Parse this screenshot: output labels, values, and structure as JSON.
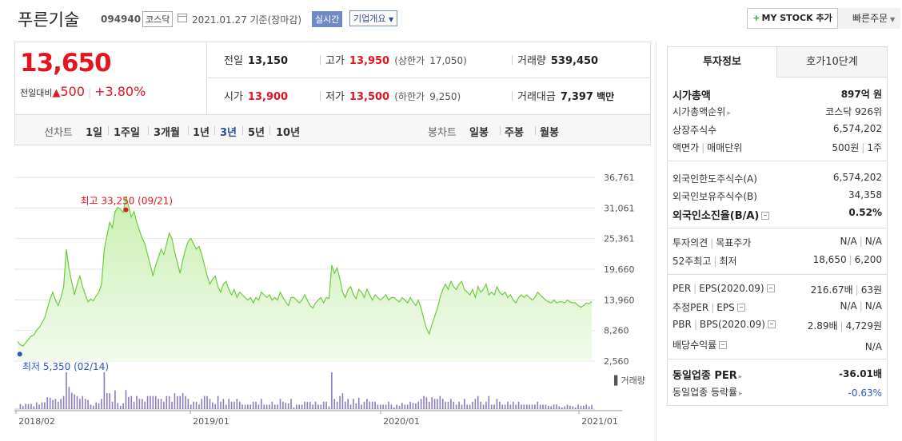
{
  "header": {
    "name": "푸른기술",
    "code": "094940",
    "market": "코스닥",
    "date": "2021.01.27 기준(장마감)",
    "realtime_label": "실시간",
    "corp_info_label": "기업개요",
    "mystock_label": "MY STOCK 추가",
    "quick_order_label": "빠른주문"
  },
  "summary": {
    "price": "13,650",
    "change_label": "전일대비",
    "change": "500",
    "change_pct": "+3.80%",
    "prev_close": {
      "label": "전일",
      "value": "13,150"
    },
    "high": {
      "label": "고가",
      "value": "13,950",
      "limit_label": "(상한가",
      "limit": "17,050)"
    },
    "volume": {
      "label": "거래량",
      "value": "539,450"
    },
    "open": {
      "label": "시가",
      "value": "13,900"
    },
    "low": {
      "label": "저가",
      "value": "13,500",
      "limit_label": "(하한가",
      "limit": "9,250)"
    },
    "amount": {
      "label": "거래대금",
      "value": "7,397",
      "unit": "백만"
    }
  },
  "periods": {
    "line_label": "선차트",
    "line_items": [
      "1일",
      "1주일",
      "3개월",
      "1년",
      "3년",
      "5년",
      "10년"
    ],
    "active": "3년",
    "candle_label": "봉차트",
    "candle_items": [
      "일봉",
      "주봉",
      "월봉"
    ]
  },
  "chart_data": {
    "type": "area",
    "title": "",
    "y_ticks": [
      "36,761",
      "31,061",
      "25,361",
      "19,660",
      "13,960",
      "8,260",
      "2,560"
    ],
    "x_ticks": [
      "2018/02",
      "2019/01",
      "2020/01",
      "2021/01"
    ],
    "ylim": [
      2560,
      36761
    ],
    "high_annotation": "최고 33,250 (09/21)",
    "low_annotation": "최저 5,350 (02/14)",
    "volume_label": "거래량",
    "series": [
      {
        "values": [
          6200,
          5600,
          5350,
          6000,
          6600,
          7200,
          7400,
          8300,
          8800,
          9700,
          10600,
          12400,
          14100,
          15400,
          13900,
          12900,
          14400,
          16400,
          23400,
          19800,
          17200,
          14900,
          16900,
          18400,
          16400,
          14900,
          13600,
          14100,
          13800,
          14700,
          15400,
          16900,
          23400,
          25900,
          28400,
          27400,
          30400,
          31200,
          30900,
          30200,
          33250,
          31400,
          29400,
          30400,
          28400,
          26900,
          25400,
          24400,
          22400,
          20400,
          18400,
          20400,
          21900,
          23400,
          22400,
          24400,
          26400,
          25400,
          22900,
          20900,
          18900,
          21400,
          23400,
          24900,
          25400,
          24400,
          23400,
          23900,
          22400,
          20400,
          18400,
          16900,
          17800,
          18400,
          16400,
          15400,
          16900,
          17400,
          15900,
          14900,
          15900,
          14400,
          15400,
          14900,
          14400,
          13900,
          14400,
          13400,
          14400,
          13900,
          15400,
          14900,
          14400,
          14900,
          13900,
          14400,
          13900,
          15400,
          14400,
          13600,
          12900,
          14400,
          14400,
          13900,
          13400,
          13900,
          14900,
          13900,
          12900,
          12400,
          13400,
          13900,
          14400,
          13400,
          14400,
          14200,
          20400,
          18900,
          19900,
          17900,
          15400,
          14400,
          15900,
          16400,
          14900,
          14200,
          15900,
          15400,
          14400,
          15900,
          14900,
          13900,
          14900,
          14400,
          13900,
          14400,
          14900,
          13900,
          14400,
          14400,
          13900,
          13600,
          14400,
          13900,
          13400,
          14400,
          13600,
          12900,
          13900,
          12400,
          10400,
          8600,
          7600,
          9400,
          10900,
          12400,
          14400,
          15900,
          16900,
          15900,
          17400,
          16400,
          15900,
          16900,
          17400,
          15900,
          15400,
          14900,
          15900,
          14400,
          16400,
          15400,
          15900,
          16900,
          14900,
          15400,
          14900,
          16400,
          15400,
          14900,
          15400,
          14400,
          14900,
          13900,
          13400,
          14400,
          14900,
          14400,
          14900,
          14400,
          13900,
          14400,
          15400,
          14900,
          14400,
          13900,
          13600,
          13400,
          13900,
          13400,
          13600,
          13600,
          13400,
          13900,
          13600,
          13400,
          13400,
          12900,
          12600,
          12900,
          13400,
          13200,
          13650
        ]
      }
    ]
  },
  "panel": {
    "tab_info": "투자정보",
    "tab_quote": "호가10단계",
    "s1": [
      {
        "k": "시가총액",
        "v": "897억 원"
      },
      {
        "k": "시가총액순위",
        "v": "코스닥 926위"
      },
      {
        "k": "상장주식수",
        "v": "6,574,202"
      },
      {
        "k": "액면가",
        "k2": "매매단위",
        "v": "500원",
        "v2": "1주"
      }
    ],
    "s2": [
      {
        "k": "외국인한도주식수(A)",
        "v": "6,574,202"
      },
      {
        "k": "외국인보유주식수(B)",
        "v": "34,358"
      },
      {
        "k": "외국인소진율(B/A)",
        "v": "0.52%"
      }
    ],
    "s3": [
      {
        "k": "투자의견",
        "k2": "목표주가",
        "v": "N/A",
        "v2": "N/A"
      },
      {
        "k": "52주최고",
        "k2": "최저",
        "v": "18,650",
        "v2": "6,200"
      }
    ],
    "s4": [
      {
        "k": "PER",
        "k2": "EPS(2020.09)",
        "v": "216.67배",
        "v2": "63원"
      },
      {
        "k": "추정PER",
        "k2": "EPS",
        "v": "N/A",
        "v2": "N/A"
      },
      {
        "k": "PBR",
        "k2": "BPS(2020.09)",
        "v": "2.89배",
        "v2": "4,729원"
      },
      {
        "k": "배당수익률",
        "v": "N/A"
      }
    ],
    "s5": [
      {
        "k": "동일업종 PER",
        "v": "-36.01배"
      },
      {
        "k": "동일업종 등락률",
        "v": "-0.63%"
      }
    ]
  }
}
